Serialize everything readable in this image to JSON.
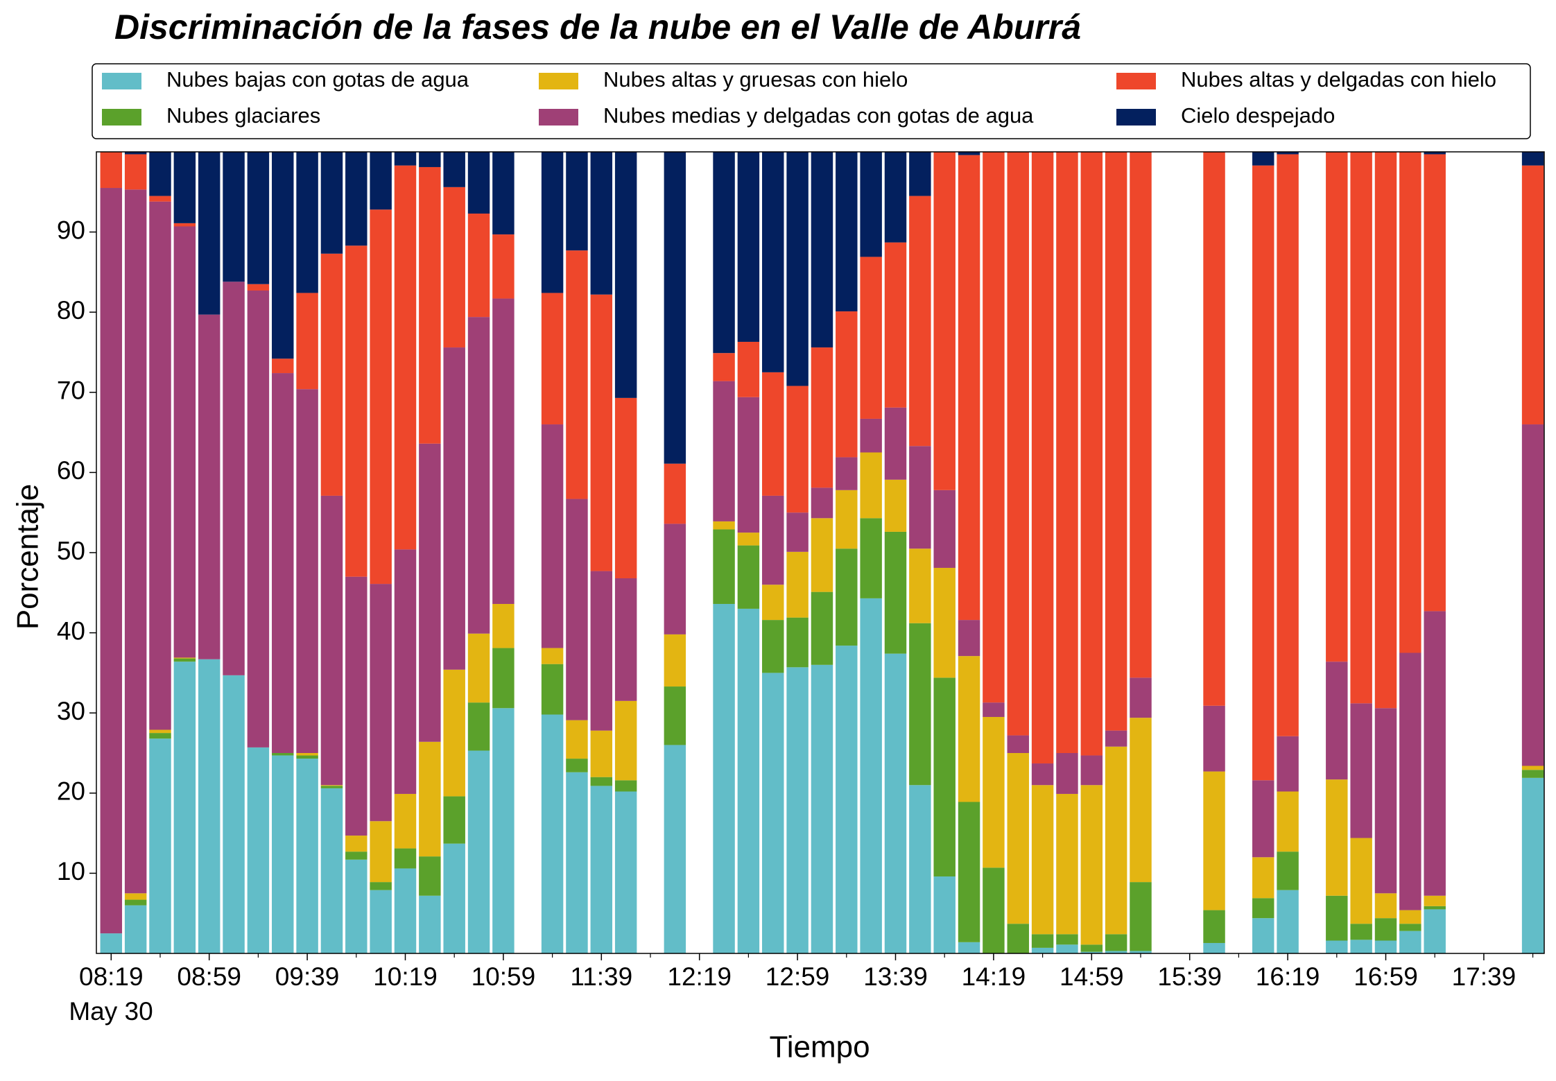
{
  "chart_data": {
    "type": "stacked_bar",
    "title": "Discriminación de la fases de la nube en el Valle de Aburrá",
    "xlabel": "Tiempo",
    "ylabel": "Porcentaje",
    "date_label": "May 30",
    "categories": [
      "08:19",
      null,
      null,
      null,
      "08:59",
      null,
      null,
      null,
      "09:39",
      null,
      null,
      null,
      "10:19",
      null,
      null,
      null,
      "10:59",
      null,
      null,
      null,
      "11:39",
      null,
      null,
      null,
      "12:19",
      null,
      null,
      null,
      "12:59",
      null,
      null,
      null,
      "13:39",
      null,
      null,
      null,
      "14:19",
      null,
      null,
      null,
      "14:59",
      null,
      null,
      null,
      "15:39",
      null,
      null,
      null,
      "16:19",
      null,
      null,
      null,
      "16:59",
      null,
      null,
      null,
      "17:39",
      null,
      null
    ],
    "ylim": [
      0,
      100
    ],
    "yticks": [
      10,
      20,
      30,
      40,
      50,
      60,
      70,
      80,
      90
    ],
    "legend": {
      "position": "upper center",
      "ncol": 3
    },
    "series": [
      {
        "name": "Nubes bajas con gotas de agua",
        "color": "#62bdc8",
        "values": [
          2.5,
          6,
          26.8,
          36.4,
          36.7,
          34.7,
          25.7,
          24.7,
          24.3,
          20.6,
          11.7,
          7.9,
          10.6,
          7.2,
          13.7,
          25.3,
          30.6,
          null,
          29.8,
          22.6,
          20.9,
          20.2,
          null,
          26,
          null,
          43.6,
          43,
          35,
          35.7,
          36,
          38.4,
          44.3,
          37.4,
          21,
          9.6,
          1.4,
          0,
          0,
          0.7,
          1.1,
          0.2,
          0.3,
          0.3,
          null,
          null,
          1.3,
          null,
          4.4,
          7.9,
          null,
          1.6,
          1.7,
          1.6,
          2.8,
          5.5,
          null,
          null,
          null,
          21.9
        ]
      },
      {
        "name": "Nubes glaciares",
        "color": "#5ba12b",
        "values": [
          0,
          0.7,
          0.7,
          0.4,
          0,
          0,
          0,
          0.3,
          0.4,
          0.3,
          1,
          1,
          2.5,
          4.9,
          5.9,
          6,
          7.5,
          null,
          6.3,
          1.7,
          1.1,
          1.4,
          null,
          7.3,
          null,
          9.3,
          7.9,
          6.6,
          6.2,
          9.1,
          12.1,
          10,
          15.2,
          20.2,
          24.8,
          17.5,
          10.7,
          3.7,
          1.7,
          1.3,
          0.9,
          2.1,
          8.6,
          null,
          null,
          4.1,
          null,
          2.5,
          4.8,
          null,
          5.6,
          2,
          2.8,
          0.9,
          0.4,
          null,
          null,
          null,
          1
        ]
      },
      {
        "name": "Nubes altas y gruesas con hielo",
        "color": "#e3b512",
        "values": [
          0,
          0.8,
          0.4,
          0.1,
          0,
          0,
          0,
          0,
          0.3,
          0.1,
          2,
          7.6,
          6.8,
          14.3,
          15.8,
          8.6,
          5.5,
          null,
          2,
          4.8,
          5.8,
          9.9,
          null,
          6.5,
          null,
          1,
          1.6,
          4.4,
          8.2,
          9.2,
          7.3,
          8.2,
          6.5,
          9.3,
          13.7,
          18.2,
          18.8,
          21.3,
          18.6,
          17.5,
          19.9,
          23.4,
          20.5,
          null,
          null,
          17.3,
          null,
          5.1,
          7.5,
          null,
          14.5,
          10.7,
          3.1,
          1.7,
          1.3,
          null,
          null,
          null,
          0.5
        ]
      },
      {
        "name": "Nubes medias y delgadas con gotas de agua",
        "color": "#9f4076",
        "values": [
          93,
          87.8,
          65.9,
          53.8,
          43,
          49.1,
          57,
          47.4,
          45.4,
          36.1,
          32.3,
          29.6,
          30.5,
          37.2,
          40.2,
          39.5,
          38.1,
          null,
          27.9,
          27.6,
          19.9,
          15.3,
          null,
          13.8,
          null,
          17.5,
          16.9,
          11.1,
          4.9,
          3.8,
          4.1,
          4.2,
          9,
          12.8,
          9.7,
          4.5,
          1.8,
          2.2,
          2.7,
          5.1,
          3.7,
          2,
          5,
          null,
          null,
          8.2,
          null,
          9.6,
          6.9,
          null,
          14.7,
          16.8,
          23.1,
          32.1,
          35.5,
          null,
          null,
          null,
          42.6
        ]
      },
      {
        "name": "Nubes altas y delgadas con hielo",
        "color": "#ee472b",
        "values": [
          4.5,
          4.4,
          0.7,
          0.4,
          0,
          0,
          0.8,
          1.8,
          12,
          30.2,
          41.3,
          46.7,
          47.9,
          34.5,
          20,
          12.9,
          8,
          null,
          16.4,
          31,
          34.5,
          22.5,
          null,
          7.5,
          null,
          3.5,
          6.9,
          15.4,
          15.8,
          17.5,
          18.2,
          20.2,
          20.6,
          31.2,
          42.2,
          58,
          68.7,
          72.8,
          76.3,
          75,
          75.3,
          72.2,
          65.6,
          null,
          null,
          69.1,
          null,
          76.7,
          72.6,
          null,
          63.6,
          68.8,
          69.4,
          62.5,
          57,
          null,
          null,
          null,
          32.3
        ]
      },
      {
        "name": "Cielo despejado",
        "color": "#03205e",
        "values": [
          0,
          0.3,
          5.5,
          8.9,
          20.3,
          16.2,
          16.5,
          25.8,
          17.6,
          12.7,
          11.7,
          7.2,
          1.7,
          1.9,
          4.4,
          7.7,
          10.3,
          null,
          17.6,
          12.3,
          17.8,
          30.7,
          null,
          38.9,
          null,
          25.1,
          23.7,
          27.5,
          29.2,
          24.4,
          19.9,
          13.1,
          11.3,
          5.5,
          0,
          0.4,
          0,
          0,
          0,
          0,
          0,
          0,
          0,
          null,
          null,
          0,
          null,
          1.7,
          0.3,
          null,
          0,
          0,
          0,
          0,
          0.3,
          null,
          null,
          null,
          1.7
        ]
      }
    ]
  }
}
